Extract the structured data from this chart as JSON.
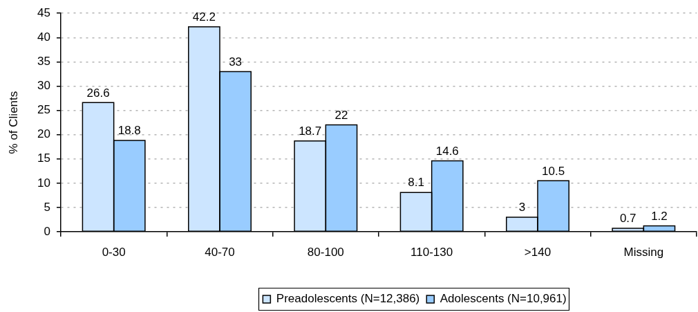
{
  "chart_data": {
    "type": "bar",
    "ylabel": "% of Clients",
    "categories": [
      "0-30",
      "40-70",
      "80-100",
      "110-130",
      ">140",
      "Missing"
    ],
    "series": [
      {
        "name": "Preadolescents (N=12,386)",
        "color": "#cce5ff",
        "values": [
          26.6,
          42.2,
          18.7,
          8.1,
          3,
          0.7
        ]
      },
      {
        "name": "Adolescents (N=10,961)",
        "color": "#99ccff",
        "values": [
          18.8,
          33,
          22,
          14.6,
          10.5,
          1.2
        ]
      }
    ],
    "ylim": [
      0,
      45
    ],
    "yticks": [
      0,
      5,
      10,
      15,
      20,
      25,
      30,
      35,
      40,
      45
    ],
    "grid": "y",
    "legend": "bottom",
    "data_labels": true
  }
}
